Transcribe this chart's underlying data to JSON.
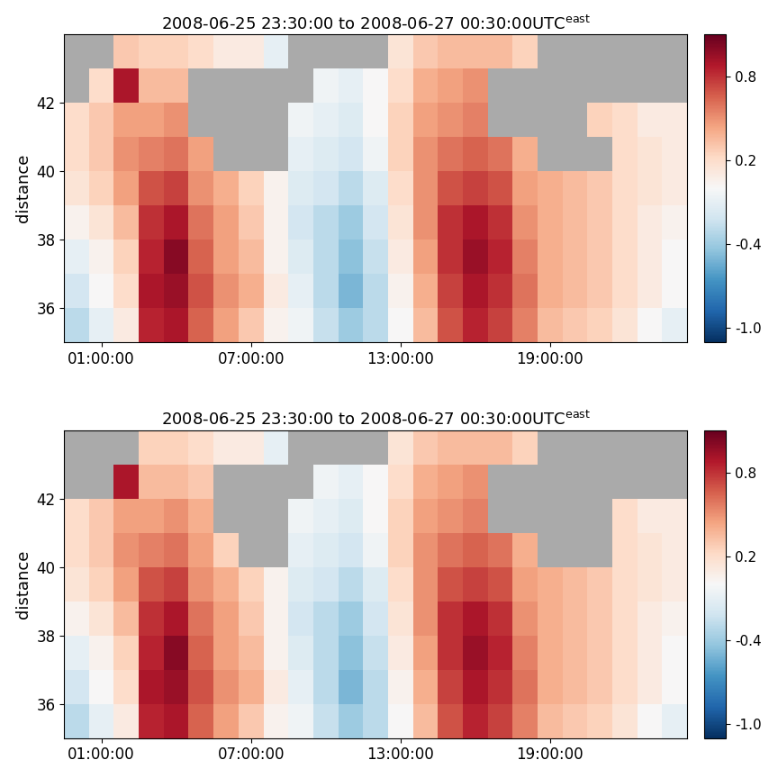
{
  "title": "2008-06-25 23:30:00 to 2008-06-27 00:30:00UTC",
  "title_superscript": "east",
  "ylabel": "distance",
  "vmin": -1.1,
  "vmax": 1.1,
  "xtick_labels": [
    "01:00:00",
    "07:00:00",
    "13:00:00",
    "19:00:00"
  ],
  "xtick_hours_from_start": [
    1.5,
    7.5,
    13.5,
    19.5
  ],
  "ytick_vals": [
    36,
    38,
    40,
    42
  ],
  "colorbar_ticks": [
    -1.0,
    -0.4,
    0.2,
    0.8
  ],
  "colorbar_labels": [
    "-1.0",
    "-0.4",
    "0.2",
    "0.8"
  ],
  "background_color": "#ffffff",
  "gray_color": "#aaaaaa",
  "n_time": 25,
  "n_dist": 9,
  "dist_min": 35.0,
  "dist_max": 44.0,
  "time_total_hours": 25.0,
  "figsize": [
    8.64,
    8.64
  ],
  "dpi": 100,
  "title_fontsize": 13,
  "label_fontsize": 13,
  "tick_fontsize": 12,
  "cbar_fontsize": 11
}
